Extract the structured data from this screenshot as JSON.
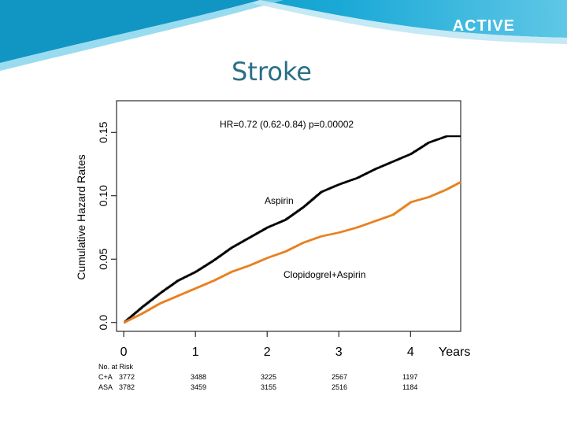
{
  "header": {
    "brand": "ACTIVE",
    "title": "Stroke"
  },
  "colors": {
    "banner": "#1aa9d6",
    "title": "#2b6f86",
    "aspirin": "#000000",
    "combo": "#e8801e"
  },
  "chart_data": {
    "type": "line",
    "title": "",
    "ylabel": "Cumulative Hazard Rates",
    "xlabel": "Years",
    "xlim": [
      -0.1,
      4.7
    ],
    "ylim": [
      -0.007,
      0.175
    ],
    "x_ticks": [
      "0",
      "1",
      "2",
      "3",
      "4"
    ],
    "y_ticks": [
      "0.0",
      "0.05",
      "0.10",
      "0.15"
    ],
    "x_tick_values": [
      0,
      1,
      2,
      3,
      4
    ],
    "y_tick_values": [
      0,
      0.05,
      0.1,
      0.15
    ],
    "annotation": "HR=0.72 (0.62-0.84) p=0.00002",
    "series": [
      {
        "name": "Aspirin",
        "color": "#000000",
        "points": [
          [
            0,
            0
          ],
          [
            0.25,
            0.012
          ],
          [
            0.5,
            0.023
          ],
          [
            0.75,
            0.033
          ],
          [
            1.0,
            0.04
          ],
          [
            1.25,
            0.049
          ],
          [
            1.5,
            0.059
          ],
          [
            1.75,
            0.067
          ],
          [
            2.0,
            0.075
          ],
          [
            2.25,
            0.081
          ],
          [
            2.5,
            0.091
          ],
          [
            2.75,
            0.103
          ],
          [
            3.0,
            0.109
          ],
          [
            3.25,
            0.114
          ],
          [
            3.5,
            0.121
          ],
          [
            3.75,
            0.127
          ],
          [
            4.0,
            0.133
          ],
          [
            4.25,
            0.142
          ],
          [
            4.5,
            0.147
          ],
          [
            4.7,
            0.147
          ]
        ]
      },
      {
        "name": "Clopidogrel+Aspirin",
        "color": "#e8801e",
        "points": [
          [
            0,
            0
          ],
          [
            0.25,
            0.007
          ],
          [
            0.5,
            0.015
          ],
          [
            0.75,
            0.021
          ],
          [
            1.0,
            0.027
          ],
          [
            1.25,
            0.033
          ],
          [
            1.5,
            0.04
          ],
          [
            1.75,
            0.045
          ],
          [
            2.0,
            0.051
          ],
          [
            2.25,
            0.056
          ],
          [
            2.5,
            0.063
          ],
          [
            2.75,
            0.068
          ],
          [
            3.0,
            0.071
          ],
          [
            3.25,
            0.075
          ],
          [
            3.5,
            0.08
          ],
          [
            3.75,
            0.085
          ],
          [
            4.0,
            0.095
          ],
          [
            4.25,
            0.099
          ],
          [
            4.5,
            0.105
          ],
          [
            4.7,
            0.111
          ]
        ]
      }
    ]
  },
  "risk_table": {
    "title": "No. at Risk",
    "rows": [
      {
        "label": "C+A",
        "values": [
          "3772",
          "3488",
          "3225",
          "2567",
          "1197"
        ]
      },
      {
        "label": "ASA",
        "values": [
          "3782",
          "3459",
          "3155",
          "2516",
          "1184"
        ]
      }
    ]
  }
}
